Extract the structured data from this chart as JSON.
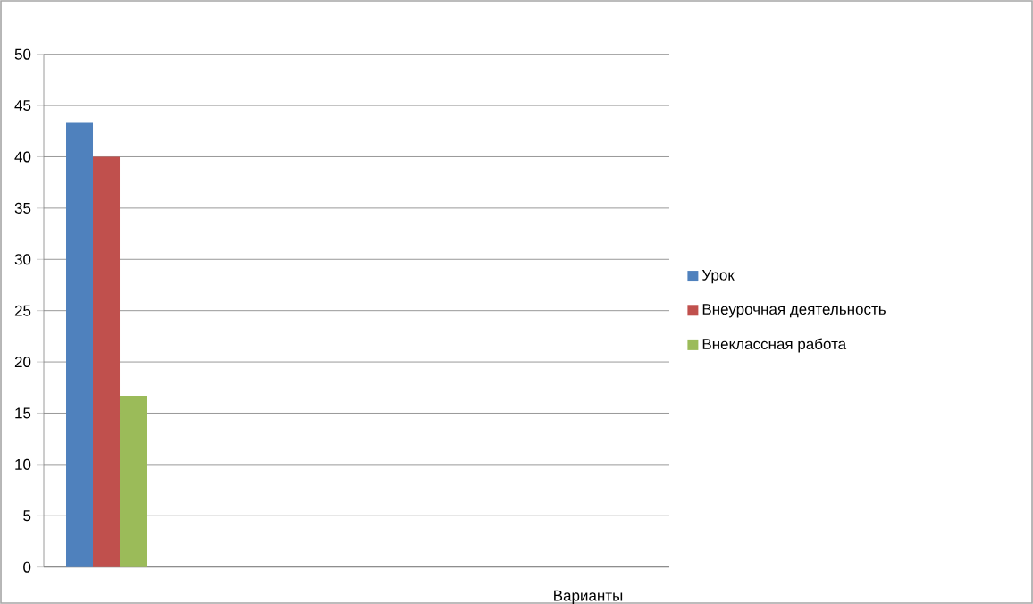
{
  "chart_data": {
    "type": "bar",
    "categories": [
      null,
      null,
      null,
      null,
      null
    ],
    "series": [
      {
        "name": "Урок",
        "color": "#4f81bd",
        "values": [
          43.3,
          null,
          null,
          null,
          null
        ]
      },
      {
        "name": "Внеурочная деятельность",
        "color": "#c0504d",
        "values": [
          40,
          null,
          null,
          null,
          null
        ]
      },
      {
        "name": "Внеклассная работа",
        "color": "#9bbb59",
        "values": [
          16.7,
          null,
          null,
          null,
          null
        ]
      }
    ],
    "xlabel": "Варианты",
    "ylim": [
      0,
      50
    ],
    "yticks": [
      0,
      5,
      10,
      15,
      20,
      25,
      30,
      35,
      40,
      45,
      50
    ],
    "grid": "y",
    "legend": "right"
  }
}
